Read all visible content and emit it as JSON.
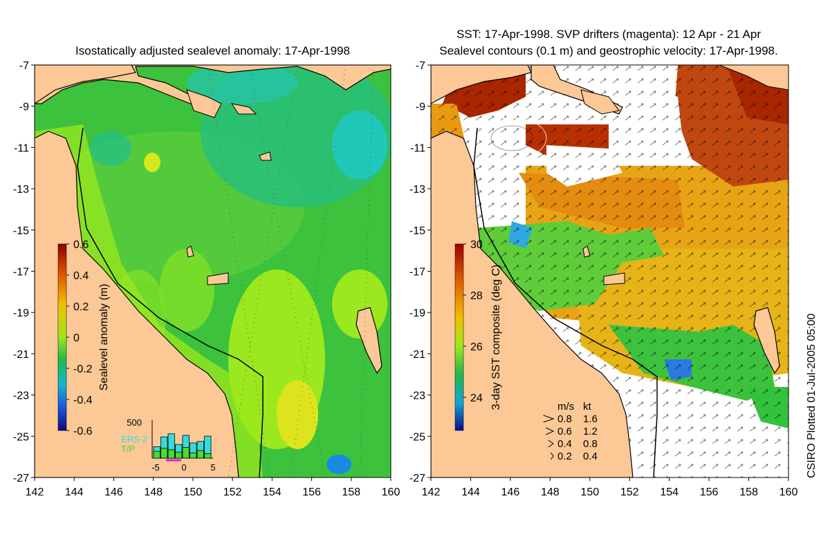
{
  "left_panel": {
    "title": "Isostatically adjusted sealevel anomaly: 17-Apr-1998",
    "colorbar_label": "Sealevel anomaly (m)",
    "colorbar_ticks": [
      "0.6",
      "0.4",
      "0.2",
      "0",
      "-0.2",
      "-0.4",
      "-0.6"
    ],
    "histogram": {
      "ymax_label": "500",
      "x_ticks": [
        "-5",
        "0",
        "5"
      ],
      "legend": [
        {
          "label": "ERS-2",
          "color": "#33dddd"
        },
        {
          "label": "T/P",
          "color": "#44dd33"
        }
      ],
      "bars_ers2": [
        150,
        280,
        320,
        180,
        300,
        200,
        220,
        290
      ],
      "bars_tp": [
        90,
        130,
        110,
        80,
        140,
        70,
        100,
        60
      ]
    }
  },
  "right_panel": {
    "title_line1": "SST: 17-Apr-1998. SVP drifters (magenta): 12 Apr - 21 Apr",
    "title_line2": "Sealevel contours (0.1 m) and geostrophic velocity: 17-Apr-1998.",
    "colorbar_label": "3-day SST composite (deg C)",
    "colorbar_ticks": [
      "30",
      "28",
      "26",
      "24"
    ],
    "velocity_legend": {
      "header_ms": "m/s",
      "header_kt": "kt",
      "rows": [
        {
          "ms": "0.8",
          "kt": "1.6",
          "scale": 0.8
        },
        {
          "ms": "0.6",
          "kt": "1.2",
          "scale": 0.6
        },
        {
          "ms": "0.4",
          "kt": "0.8",
          "scale": 0.4
        },
        {
          "ms": "0.2",
          "kt": "0.4",
          "scale": 0.2
        }
      ]
    }
  },
  "axes": {
    "lat_ticks": [
      "-7",
      "-9",
      "-11",
      "-13",
      "-15",
      "-17",
      "-19",
      "-21",
      "-23",
      "-25",
      "-27"
    ],
    "lon_ticks": [
      "142",
      "144",
      "146",
      "148",
      "150",
      "152",
      "154",
      "156",
      "158",
      "160"
    ]
  },
  "credit": "CSIRO Plotted 01-Jul-2005 05:00",
  "colors": {
    "land": "#fbc896",
    "sea_green": "#3cc23c",
    "sea_yellow_green": "#9be81e",
    "sea_teal": "#1fbfa0",
    "sst_orange": "#e89a10",
    "sst_red": "#b82e00"
  }
}
